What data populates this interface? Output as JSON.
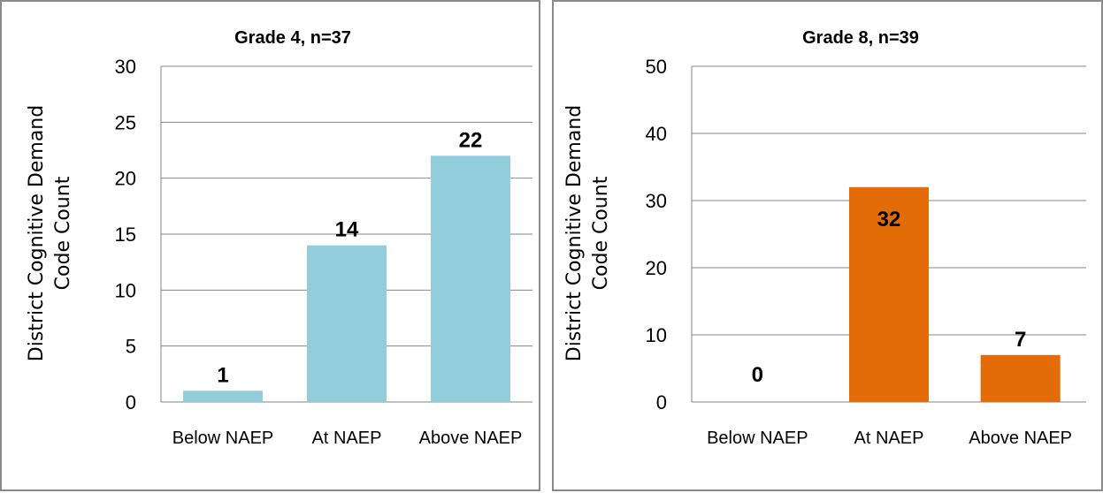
{
  "chart_data": [
    {
      "type": "bar",
      "title": "Grade 4, n=37",
      "ylabel": [
        "District Cognitive Demand",
        "Code Count"
      ],
      "categories": [
        "Below NAEP",
        "At NAEP",
        "Above NAEP"
      ],
      "values": [
        1,
        14,
        22
      ],
      "data_labels": [
        "1",
        "14",
        "22"
      ],
      "ylim": [
        0,
        30
      ],
      "yticks": [
        0,
        5,
        10,
        15,
        20,
        25,
        30
      ],
      "grid": true,
      "bar_color": "#92CDDC"
    },
    {
      "type": "bar",
      "title": "Grade 8, n=39",
      "ylabel": [
        "District Cognitive Demand",
        "Code Count"
      ],
      "categories": [
        "Below NAEP",
        "At NAEP",
        "Above NAEP"
      ],
      "values": [
        0,
        32,
        7
      ],
      "data_labels": [
        "0",
        "32",
        "7"
      ],
      "ylim": [
        0,
        50
      ],
      "yticks": [
        0,
        10,
        20,
        30,
        40,
        50
      ],
      "grid": true,
      "bar_color": "#E36C09"
    }
  ]
}
